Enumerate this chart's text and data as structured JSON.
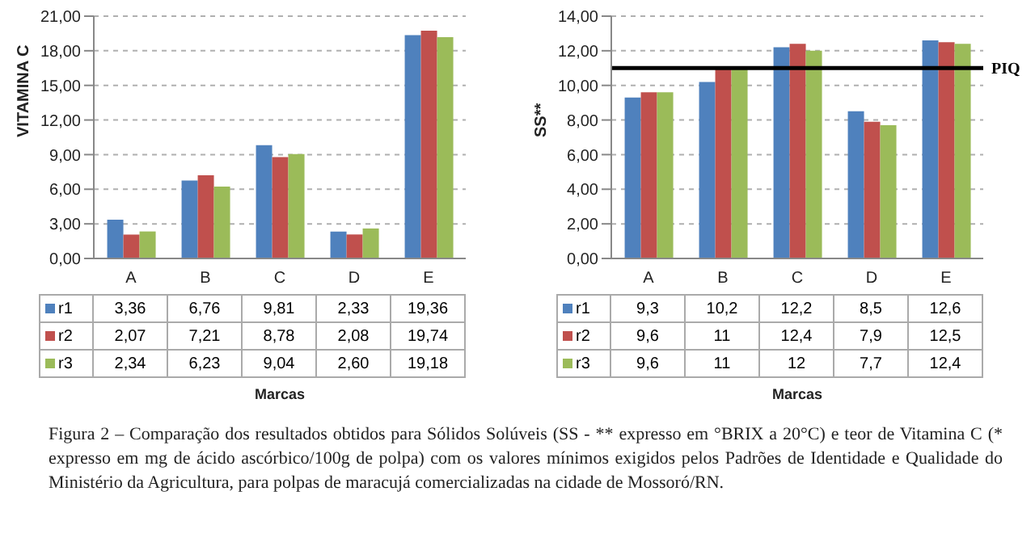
{
  "chart_data": [
    {
      "type": "bar",
      "ylabel": "VITAMINA C",
      "xlabel": "Marcas",
      "categories": [
        "A",
        "B",
        "C",
        "D",
        "E"
      ],
      "series": [
        {
          "name": "r1",
          "color": "#4f81bd",
          "values": [
            3.36,
            6.76,
            9.81,
            2.33,
            19.36
          ],
          "value_labels": [
            "3,36",
            "6,76",
            "9,81",
            "2,33",
            "19,36"
          ]
        },
        {
          "name": "r2",
          "color": "#c0504d",
          "values": [
            2.07,
            7.21,
            8.78,
            2.08,
            19.74
          ],
          "value_labels": [
            "2,07",
            "7,21",
            "8,78",
            "2,08",
            "19,74"
          ]
        },
        {
          "name": "r3",
          "color": "#9bbb59",
          "values": [
            2.34,
            6.23,
            9.04,
            2.6,
            19.18
          ],
          "value_labels": [
            "2,34",
            "6,23",
            "9,04",
            "2,60",
            "19,18"
          ]
        }
      ],
      "ylim": [
        0,
        21
      ],
      "yticks": [
        {
          "value": 0,
          "label": "0,00"
        },
        {
          "value": 3,
          "label": "3,00"
        },
        {
          "value": 6,
          "label": "6,00"
        },
        {
          "value": 9,
          "label": "9,00"
        },
        {
          "value": 12,
          "label": "12,00"
        },
        {
          "value": 15,
          "label": "15,00"
        },
        {
          "value": 18,
          "label": "18,00"
        },
        {
          "value": 21,
          "label": "21,00"
        }
      ],
      "grid": "y",
      "legend": "bottom"
    },
    {
      "type": "bar",
      "ylabel": "SS**",
      "xlabel": "Marcas",
      "categories": [
        "A",
        "B",
        "C",
        "D",
        "E"
      ],
      "series": [
        {
          "name": "r1",
          "color": "#4f81bd",
          "values": [
            9.3,
            10.2,
            12.2,
            8.5,
            12.6
          ],
          "value_labels": [
            "9,3",
            "10,2",
            "12,2",
            "8,5",
            "12,6"
          ]
        },
        {
          "name": "r2",
          "color": "#c0504d",
          "values": [
            9.6,
            11,
            12.4,
            7.9,
            12.5
          ],
          "value_labels": [
            "9,6",
            "11",
            "12,4",
            "7,9",
            "12,5"
          ]
        },
        {
          "name": "r3",
          "color": "#9bbb59",
          "values": [
            9.6,
            11,
            12,
            7.7,
            12.4
          ],
          "value_labels": [
            "9,6",
            "11",
            "12",
            "7,7",
            "12,4"
          ]
        }
      ],
      "ylim": [
        0,
        14
      ],
      "yticks": [
        {
          "value": 0,
          "label": "0,00"
        },
        {
          "value": 2,
          "label": "2,00"
        },
        {
          "value": 4,
          "label": "4,00"
        },
        {
          "value": 6,
          "label": "6,00"
        },
        {
          "value": 8,
          "label": "8,00"
        },
        {
          "value": 10,
          "label": "10,00"
        },
        {
          "value": 12,
          "label": "12,00"
        },
        {
          "value": 14,
          "label": "14,00"
        }
      ],
      "ref_lines": [
        {
          "axis": "y",
          "value": 11,
          "label": "PIQ",
          "color": "#000000"
        }
      ],
      "grid": "y",
      "legend": "bottom",
      "annotations": [
        "Figura 2 – Comparação dos resultados obtidos para Sólidos Solúveis (SS - ** expresso em °BRIX a 20°C) e teor de Vitamina C (* expresso em mg de ácido ascórbico/100g de polpa) com os valores mínimos exigidos pelos Padrões de Identidade e Qualidade do Ministério da Agricultura, para polpas de maracujá comercializadas na cidade de Mossoró/RN."
      ]
    }
  ]
}
